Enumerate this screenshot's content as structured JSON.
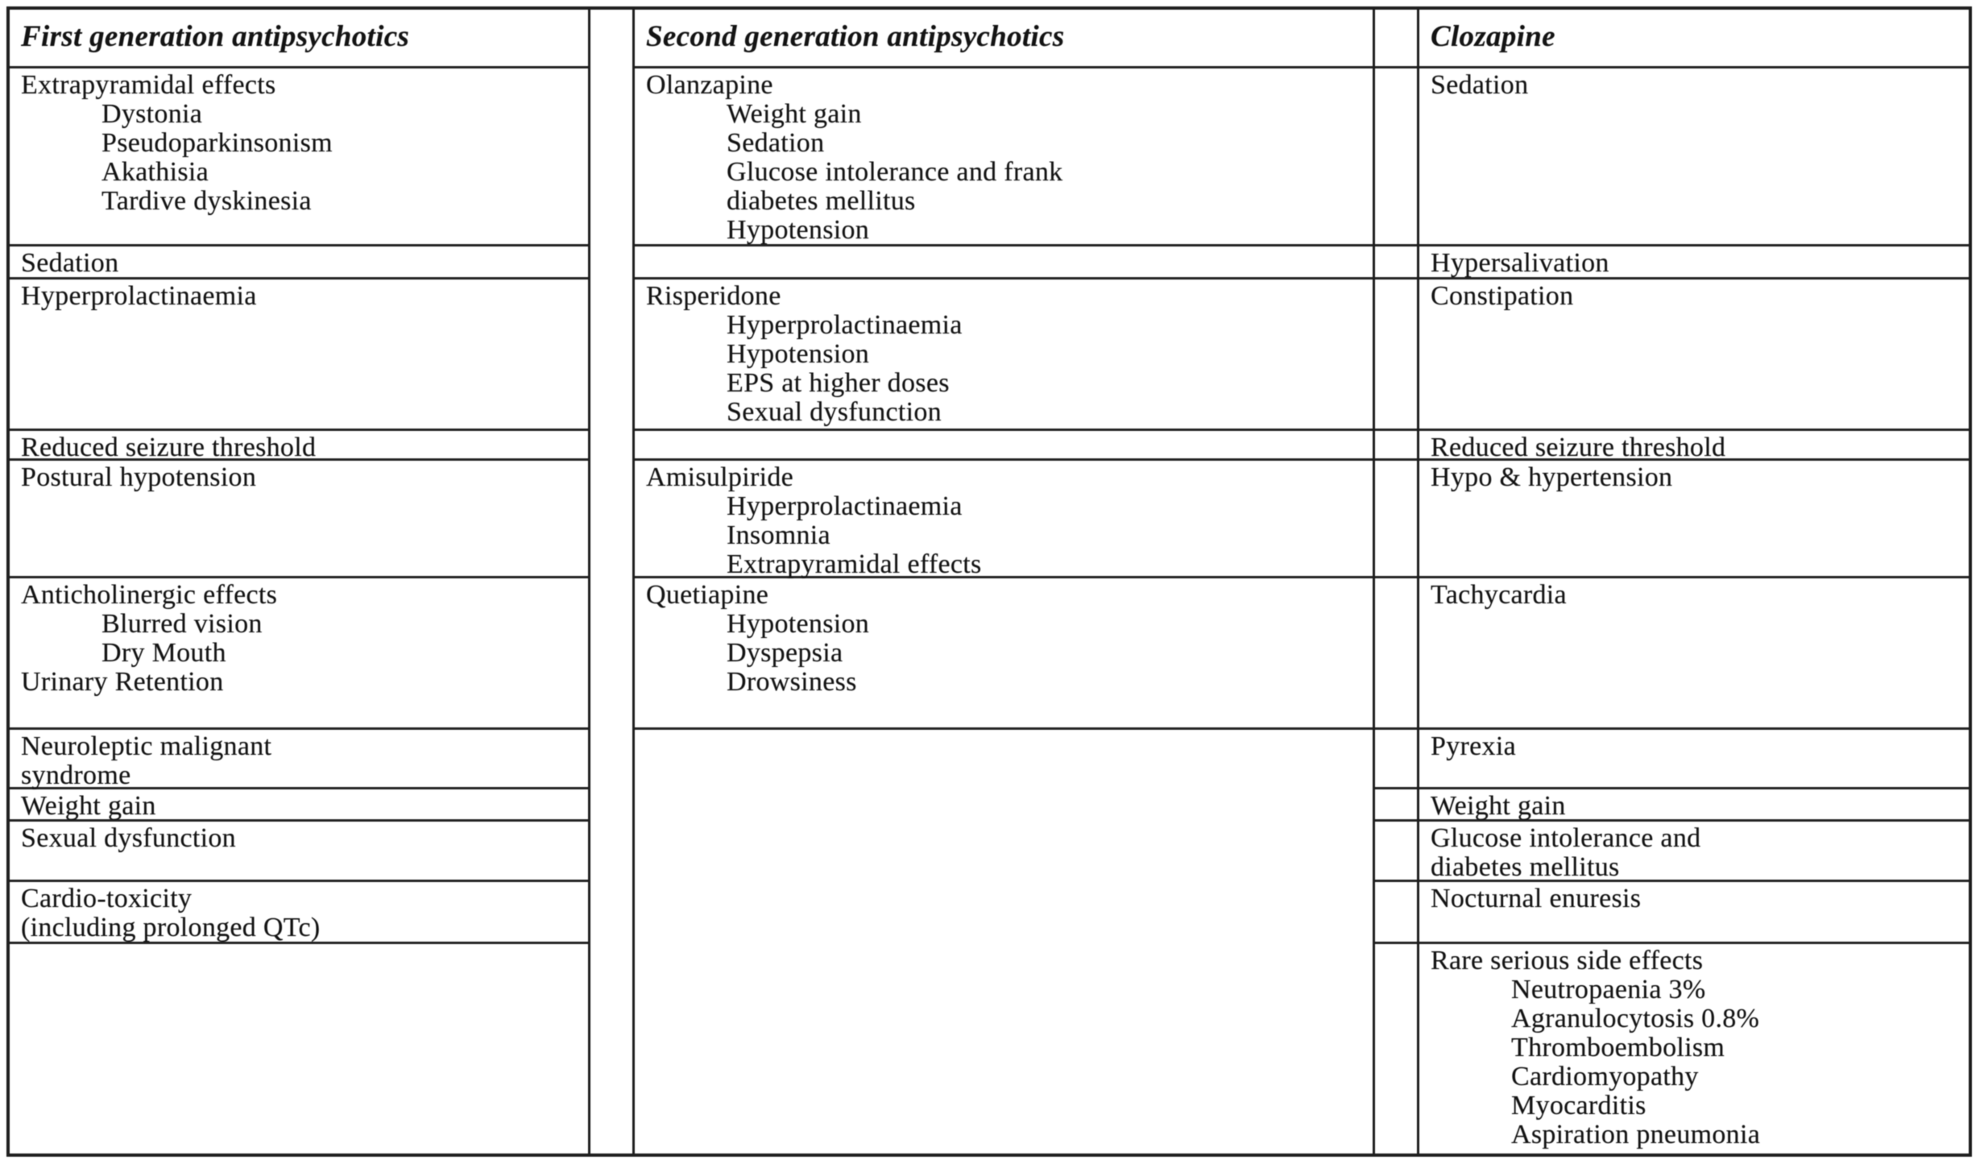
{
  "fga": {
    "header": "First generation antipsychotics",
    "extrapyramidal": {
      "title": "Extrapyramidal effects",
      "sub1": "Dystonia",
      "sub2": "Pseudoparkinsonism",
      "sub3": "Akathisia",
      "sub4": "Tardive dyskinesia"
    },
    "sedation": "Sedation",
    "hyperprolactinaemia": "Hyperprolactinaemia",
    "reduced_seizure": "Reduced seizure threshold",
    "postural_hypotension": "Postural hypotension",
    "anticholinergic": {
      "title": "Anticholinergic effects",
      "sub1": "Blurred vision",
      "sub2": "Dry Mouth",
      "tail": "Urinary Retention"
    },
    "nms": {
      "line1": "Neuroleptic malignant",
      "line2": "syndrome"
    },
    "weight_gain": "Weight gain",
    "sexual_dysfunction": "Sexual dysfunction",
    "cardiotoxicity": {
      "line1": "Cardio-toxicity",
      "line2": "(including prolonged QTc)"
    }
  },
  "sga": {
    "header": "Second generation antipsychotics",
    "olanzapine": {
      "title": "Olanzapine",
      "sub1": "Weight gain",
      "sub2": "Sedation",
      "sub3": "Glucose intolerance and frank",
      "sub4": "diabetes mellitus",
      "sub5": "Hypotension"
    },
    "risperidone": {
      "title": "Risperidone",
      "sub1": "Hyperprolactinaemia",
      "sub2": "Hypotension",
      "sub3": "EPS at higher doses",
      "sub4": "Sexual dysfunction"
    },
    "amisulpiride": {
      "title": "Amisulpiride",
      "sub1": "Hyperprolactinaemia",
      "sub2": "Insomnia",
      "sub3": "Extrapyramidal effects"
    },
    "quetiapine": {
      "title": "Quetiapine",
      "sub1": "Hypotension",
      "sub2": "Dyspepsia",
      "sub3": "Drowsiness"
    }
  },
  "cloz": {
    "header": "Clozapine",
    "sedation": "Sedation",
    "hypersalivation": "Hypersalivation",
    "constipation": "Constipation",
    "reduced_seizure": "Reduced seizure threshold",
    "hypo_hypertension": "Hypo & hypertension",
    "tachycardia": "Tachycardia",
    "pyrexia": "Pyrexia",
    "weight_gain": "Weight gain",
    "glucose": {
      "line1": "Glucose intolerance and",
      "line2": "diabetes mellitus"
    },
    "nocturnal_enuresis": "Nocturnal enuresis",
    "rare": {
      "title": "Rare serious side effects",
      "sub1": "Neutropaenia 3%",
      "sub2": "Agranulocytosis 0.8%",
      "sub3": "Thromboembolism",
      "sub4": "Cardiomyopathy",
      "sub5": "Myocarditis",
      "sub6": "Aspiration pneumonia"
    }
  }
}
